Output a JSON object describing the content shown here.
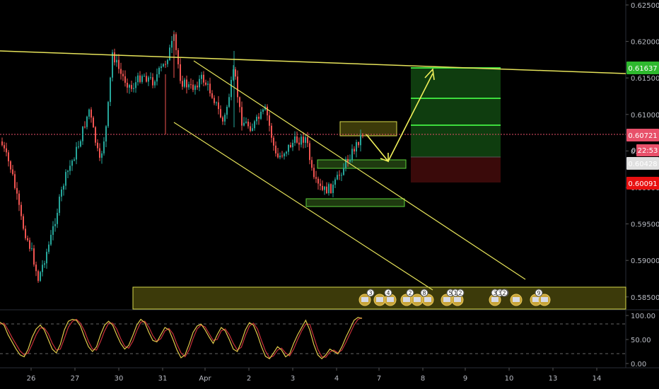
{
  "chart_data": {
    "type": "candlestick",
    "price_axis": {
      "range": [
        0.58267,
        0.6251
      ],
      "ticks": [
        "0.62500",
        "0.62000",
        "0.61500",
        "0.61000",
        "0.60500",
        "0.60000",
        "0.59500",
        "0.59000",
        "0.58500"
      ]
    },
    "time_axis": {
      "ticks": [
        "26",
        "27",
        "30",
        "31",
        "Apr",
        "2",
        "3",
        "4",
        "5",
        "6",
        "7",
        "8",
        "9",
        "10",
        "11",
        "13",
        "14"
      ]
    },
    "price_labels": {
      "target": "0.61637",
      "current": "0.60721",
      "countdown": "22:53",
      "prefix": "0.",
      "entry": "0.60428",
      "stop": "0.60091"
    },
    "oscillator": {
      "range": [
        -3,
        106
      ],
      "ticks": [
        "100.00",
        "50.00",
        "0.00"
      ],
      "levels": [
        80,
        20
      ],
      "k": [
        86,
        80,
        60,
        45,
        30,
        18,
        14,
        30,
        55,
        72,
        80,
        70,
        50,
        30,
        22,
        40,
        70,
        88,
        92,
        90,
        78,
        55,
        35,
        25,
        35,
        60,
        80,
        88,
        80,
        60,
        42,
        30,
        38,
        58,
        80,
        92,
        85,
        65,
        48,
        45,
        60,
        75,
        70,
        50,
        28,
        12,
        18,
        40,
        65,
        78,
        82,
        70,
        55,
        42,
        60,
        75,
        68,
        50,
        30,
        25,
        45,
        70,
        85,
        80,
        60,
        35,
        15,
        10,
        22,
        35,
        28,
        14,
        20,
        42,
        60,
        75,
        90,
        70,
        40,
        18,
        10,
        18,
        30,
        25,
        20,
        35,
        55,
        72,
        90,
        96,
        94
      ],
      "d": [
        82,
        84,
        70,
        54,
        40,
        26,
        18,
        22,
        40,
        60,
        74,
        74,
        62,
        42,
        28,
        30,
        52,
        76,
        88,
        92,
        84,
        68,
        46,
        30,
        28,
        46,
        68,
        84,
        84,
        72,
        52,
        36,
        32,
        46,
        68,
        86,
        88,
        76,
        58,
        46,
        52,
        68,
        73,
        62,
        40,
        22,
        14,
        28,
        52,
        72,
        80,
        76,
        62,
        48,
        50,
        68,
        72,
        60,
        42,
        28,
        34,
        58,
        78,
        84,
        72,
        48,
        26,
        12,
        16,
        28,
        32,
        22,
        16,
        30,
        50,
        68,
        82,
        82,
        56,
        30,
        14,
        13,
        24,
        28,
        22,
        28,
        44,
        62,
        80,
        92,
        95
      ]
    },
    "colors": {
      "up": "#26a69a",
      "down": "#ef5350",
      "trendline": "#e6e35a",
      "current_price": "#e8506a",
      "target_zone": "#0f3d0f",
      "target_lines": "#3ddc3d",
      "stop_zone": "#3a0a0a",
      "support_zone": "#3c3a0a",
      "zone_border": "#d6d84a",
      "green_box": "#2f6a1a",
      "osc_k": "#e0c94a",
      "osc_d": "#c8303a",
      "background": "#000000"
    }
  },
  "event_icons": {
    "counts": [
      "3",
      "4",
      "2",
      "8",
      "5",
      "1",
      "2",
      "3",
      "3",
      "3",
      "2",
      "9"
    ]
  }
}
